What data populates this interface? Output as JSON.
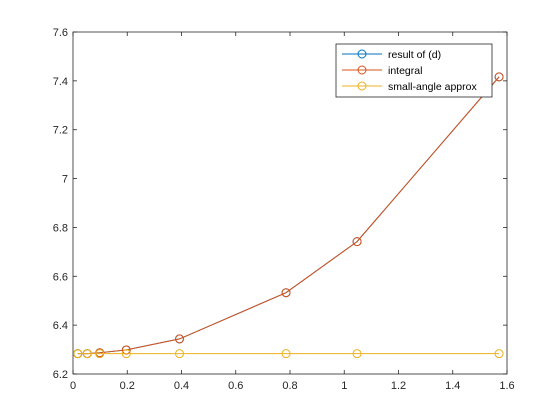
{
  "chart_data": {
    "type": "line",
    "title": "",
    "xlabel": "",
    "ylabel": "",
    "xlim": [
      0,
      1.6
    ],
    "ylim": [
      6.2,
      7.6
    ],
    "x_ticks": [
      0,
      0.2,
      0.4,
      0.6,
      0.8,
      1.0,
      1.2,
      1.4,
      1.6
    ],
    "x_tick_labels": [
      "0",
      "0.2",
      "0.4",
      "0.6",
      "0.8",
      "1",
      "1.2",
      "1.4",
      "1.6"
    ],
    "y_ticks": [
      6.2,
      6.4,
      6.6,
      6.8,
      7.0,
      7.2,
      7.4,
      7.6
    ],
    "y_tick_labels": [
      "6.2",
      "6.4",
      "6.6",
      "6.8",
      "7",
      "7.2",
      "7.4",
      "7.6"
    ],
    "grid": false,
    "legend_position": "top-right",
    "marker": "circle",
    "x": [
      0.0175,
      0.0524,
      0.0985,
      0.1963,
      0.3927,
      0.7854,
      1.0472,
      1.5708
    ],
    "series": [
      {
        "name": "result of (d)",
        "color": "#0072BD",
        "y": [
          6.2833,
          6.2836,
          6.287,
          6.2985,
          6.3436,
          6.5328,
          6.7419,
          7.4163
        ]
      },
      {
        "name": "integral",
        "color": "#D95319",
        "y": [
          6.2833,
          6.2836,
          6.287,
          6.2985,
          6.3436,
          6.5328,
          6.7419,
          7.4163
        ]
      },
      {
        "name": "small-angle approx",
        "color": "#EDB120",
        "y": [
          6.2832,
          6.2832,
          6.2832,
          6.2832,
          6.2832,
          6.2832,
          6.2832,
          6.2832
        ]
      }
    ]
  }
}
